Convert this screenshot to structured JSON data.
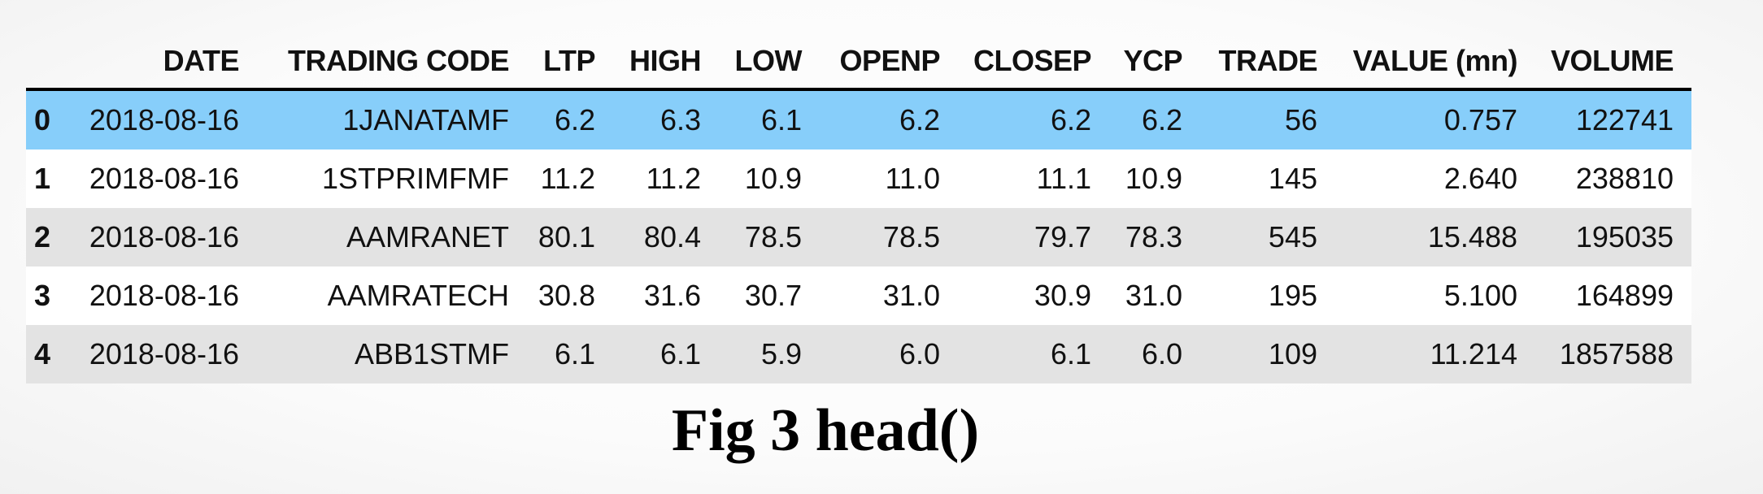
{
  "table": {
    "columns": [
      "",
      "DATE",
      "TRADING CODE",
      "LTP",
      "HIGH",
      "LOW",
      "OPENP",
      "CLOSEP",
      "YCP",
      "TRADE",
      "VALUE (mn)",
      "VOLUME"
    ],
    "rows": [
      [
        "0",
        "2018-08-16",
        "1JANATAMF",
        "6.2",
        "6.3",
        "6.1",
        "6.2",
        "6.2",
        "6.2",
        "56",
        "0.757",
        "122741"
      ],
      [
        "1",
        "2018-08-16",
        "1STPRIMFMF",
        "11.2",
        "11.2",
        "10.9",
        "11.0",
        "11.1",
        "10.9",
        "145",
        "2.640",
        "238810"
      ],
      [
        "2",
        "2018-08-16",
        "AAMRANET",
        "80.1",
        "80.4",
        "78.5",
        "78.5",
        "79.7",
        "78.3",
        "545",
        "15.488",
        "195035"
      ],
      [
        "3",
        "2018-08-16",
        "AAMRATECH",
        "30.8",
        "31.6",
        "30.7",
        "31.0",
        "30.9",
        "31.0",
        "195",
        "5.100",
        "164899"
      ],
      [
        "4",
        "2018-08-16",
        "ABB1STMF",
        "6.1",
        "6.1",
        "5.9",
        "6.0",
        "6.1",
        "6.0",
        "109",
        "11.214",
        "1857588"
      ]
    ],
    "selected_row": 0,
    "colors": {
      "selected_row": "#87cefa",
      "striped_row": "#e3e3e3",
      "plain_row": "#ffffff"
    }
  },
  "caption": "Fig 3 head()"
}
